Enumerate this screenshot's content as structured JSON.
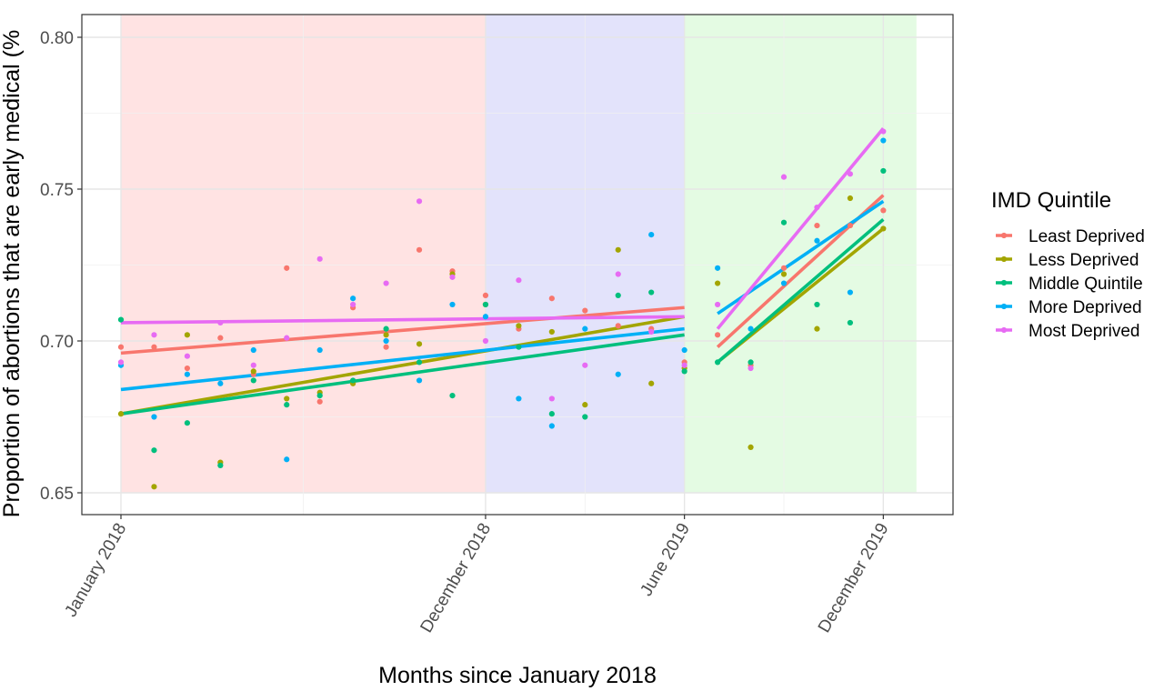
{
  "chart_data": {
    "type": "scatter",
    "xlabel": "Months since January 2018",
    "ylabel": "Proportion of abortions that are early medical (%",
    "x_unit": "month",
    "x_range": [
      "2017-12",
      "2020-01"
    ],
    "ylim": [
      0.64,
      0.81
    ],
    "y_ticks": [
      0.65,
      0.7,
      0.75,
      0.8
    ],
    "y_tick_labels": [
      "0.65",
      "0.70",
      "0.75",
      "0.80"
    ],
    "x_ticks": [
      "2018-01",
      "2018-12",
      "2019-06",
      "2019-12"
    ],
    "x_tick_labels": [
      "January 2018",
      "December 2018",
      "June 2019",
      "December 2019"
    ],
    "grid": true,
    "legend": {
      "title": "IMD Quintile",
      "position": "right",
      "items": [
        "Least Deprived",
        "Less Deprived",
        "Middle Quintile",
        "More Deprived",
        "Most Deprived"
      ]
    },
    "shaded_periods": [
      {
        "start": "2018-01",
        "end": "2018-12",
        "color": "#ffe3e3"
      },
      {
        "start": "2018-12",
        "end": "2019-06",
        "color": "#e3e3fb"
      },
      {
        "start": "2019-06",
        "end": "2019-12",
        "extend_months": 1,
        "color": "#e4fbe3"
      }
    ],
    "series": [
      {
        "name": "Least Deprived",
        "color": "#f8766d",
        "x": [
          "2018-01",
          "2018-02",
          "2018-03",
          "2018-04",
          "2018-05",
          "2018-06",
          "2018-07",
          "2018-08",
          "2018-09",
          "2018-10",
          "2018-11",
          "2018-12",
          "2019-01",
          "2019-02",
          "2019-03",
          "2019-04",
          "2019-05",
          "2019-06",
          "2019-07",
          "2019-08",
          "2019-09",
          "2019-10",
          "2019-11",
          "2019-12"
        ],
        "y": [
          0.698,
          0.698,
          0.691,
          0.701,
          0.689,
          0.724,
          0.68,
          0.711,
          0.698,
          0.73,
          0.723,
          0.715,
          0.704,
          0.714,
          0.71,
          0.705,
          0.704,
          0.693,
          0.702,
          0.692,
          0.724,
          0.738,
          0.738,
          0.743
        ],
        "fit": [
          {
            "x": [
              "2018-01",
              "2019-06"
            ],
            "y": [
              0.696,
              0.711
            ]
          },
          {
            "x": [
              "2019-07",
              "2019-12"
            ],
            "y": [
              0.698,
              0.748
            ]
          }
        ]
      },
      {
        "name": "Less Deprived",
        "color": "#a3a500",
        "x": [
          "2018-01",
          "2018-02",
          "2018-03",
          "2018-04",
          "2018-05",
          "2018-06",
          "2018-07",
          "2018-08",
          "2018-09",
          "2018-10",
          "2018-11",
          "2018-12",
          "2019-01",
          "2019-02",
          "2019-03",
          "2019-04",
          "2019-05",
          "2019-06",
          "2019-07",
          "2019-08",
          "2019-09",
          "2019-10",
          "2019-11",
          "2019-12"
        ],
        "y": [
          0.676,
          0.652,
          0.702,
          0.66,
          0.69,
          0.681,
          0.683,
          0.686,
          0.702,
          0.699,
          0.722,
          0.712,
          0.705,
          0.703,
          0.679,
          0.73,
          0.686,
          0.691,
          0.719,
          0.665,
          0.722,
          0.704,
          0.747,
          0.737
        ],
        "fit": [
          {
            "x": [
              "2018-01",
              "2019-06"
            ],
            "y": [
              0.676,
              0.708
            ]
          },
          {
            "x": [
              "2019-07",
              "2019-12"
            ],
            "y": [
              0.693,
              0.737
            ]
          }
        ]
      },
      {
        "name": "Middle Quintile",
        "color": "#00bf7d",
        "x": [
          "2018-01",
          "2018-02",
          "2018-03",
          "2018-04",
          "2018-05",
          "2018-06",
          "2018-07",
          "2018-08",
          "2018-09",
          "2018-10",
          "2018-11",
          "2018-12",
          "2019-01",
          "2019-02",
          "2019-03",
          "2019-04",
          "2019-05",
          "2019-06",
          "2019-07",
          "2019-08",
          "2019-09",
          "2019-10",
          "2019-11",
          "2019-12"
        ],
        "y": [
          0.707,
          0.664,
          0.673,
          0.659,
          0.687,
          0.679,
          0.682,
          0.687,
          0.704,
          0.693,
          0.682,
          0.712,
          0.698,
          0.676,
          0.675,
          0.715,
          0.716,
          0.69,
          0.693,
          0.693,
          0.739,
          0.712,
          0.706,
          0.756
        ],
        "fit": [
          {
            "x": [
              "2018-01",
              "2019-06"
            ],
            "y": [
              0.676,
              0.702
            ]
          },
          {
            "x": [
              "2019-07",
              "2019-12"
            ],
            "y": [
              0.693,
              0.74
            ]
          }
        ]
      },
      {
        "name": "More Deprived",
        "color": "#00b0f6",
        "x": [
          "2018-01",
          "2018-02",
          "2018-03",
          "2018-04",
          "2018-05",
          "2018-06",
          "2018-07",
          "2018-08",
          "2018-09",
          "2018-10",
          "2018-11",
          "2018-12",
          "2019-01",
          "2019-02",
          "2019-03",
          "2019-04",
          "2019-05",
          "2019-06",
          "2019-07",
          "2019-08",
          "2019-09",
          "2019-10",
          "2019-11",
          "2019-12"
        ],
        "y": [
          0.692,
          0.675,
          0.689,
          0.686,
          0.697,
          0.661,
          0.697,
          0.714,
          0.7,
          0.687,
          0.712,
          0.708,
          0.681,
          0.672,
          0.704,
          0.689,
          0.735,
          0.697,
          0.724,
          0.704,
          0.719,
          0.733,
          0.716,
          0.766
        ],
        "fit": [
          {
            "x": [
              "2018-01",
              "2019-06"
            ],
            "y": [
              0.684,
              0.704
            ]
          },
          {
            "x": [
              "2019-07",
              "2019-12"
            ],
            "y": [
              0.709,
              0.746
            ]
          }
        ]
      },
      {
        "name": "Most Deprived",
        "color": "#e76bf3",
        "x": [
          "2018-01",
          "2018-02",
          "2018-03",
          "2018-04",
          "2018-05",
          "2018-06",
          "2018-07",
          "2018-08",
          "2018-09",
          "2018-10",
          "2018-11",
          "2018-12",
          "2019-01",
          "2019-02",
          "2019-03",
          "2019-04",
          "2019-05",
          "2019-06",
          "2019-07",
          "2019-08",
          "2019-09",
          "2019-10",
          "2019-11",
          "2019-12"
        ],
        "y": [
          0.693,
          0.702,
          0.695,
          0.706,
          0.692,
          0.701,
          0.727,
          0.712,
          0.719,
          0.746,
          0.721,
          0.7,
          0.72,
          0.681,
          0.692,
          0.722,
          0.703,
          0.692,
          0.712,
          0.691,
          0.754,
          0.744,
          0.755,
          0.769
        ],
        "fit": [
          {
            "x": [
              "2018-01",
              "2019-06"
            ],
            "y": [
              0.706,
              0.708
            ]
          },
          {
            "x": [
              "2019-07",
              "2019-12"
            ],
            "y": [
              0.704,
              0.77
            ]
          }
        ]
      }
    ]
  }
}
